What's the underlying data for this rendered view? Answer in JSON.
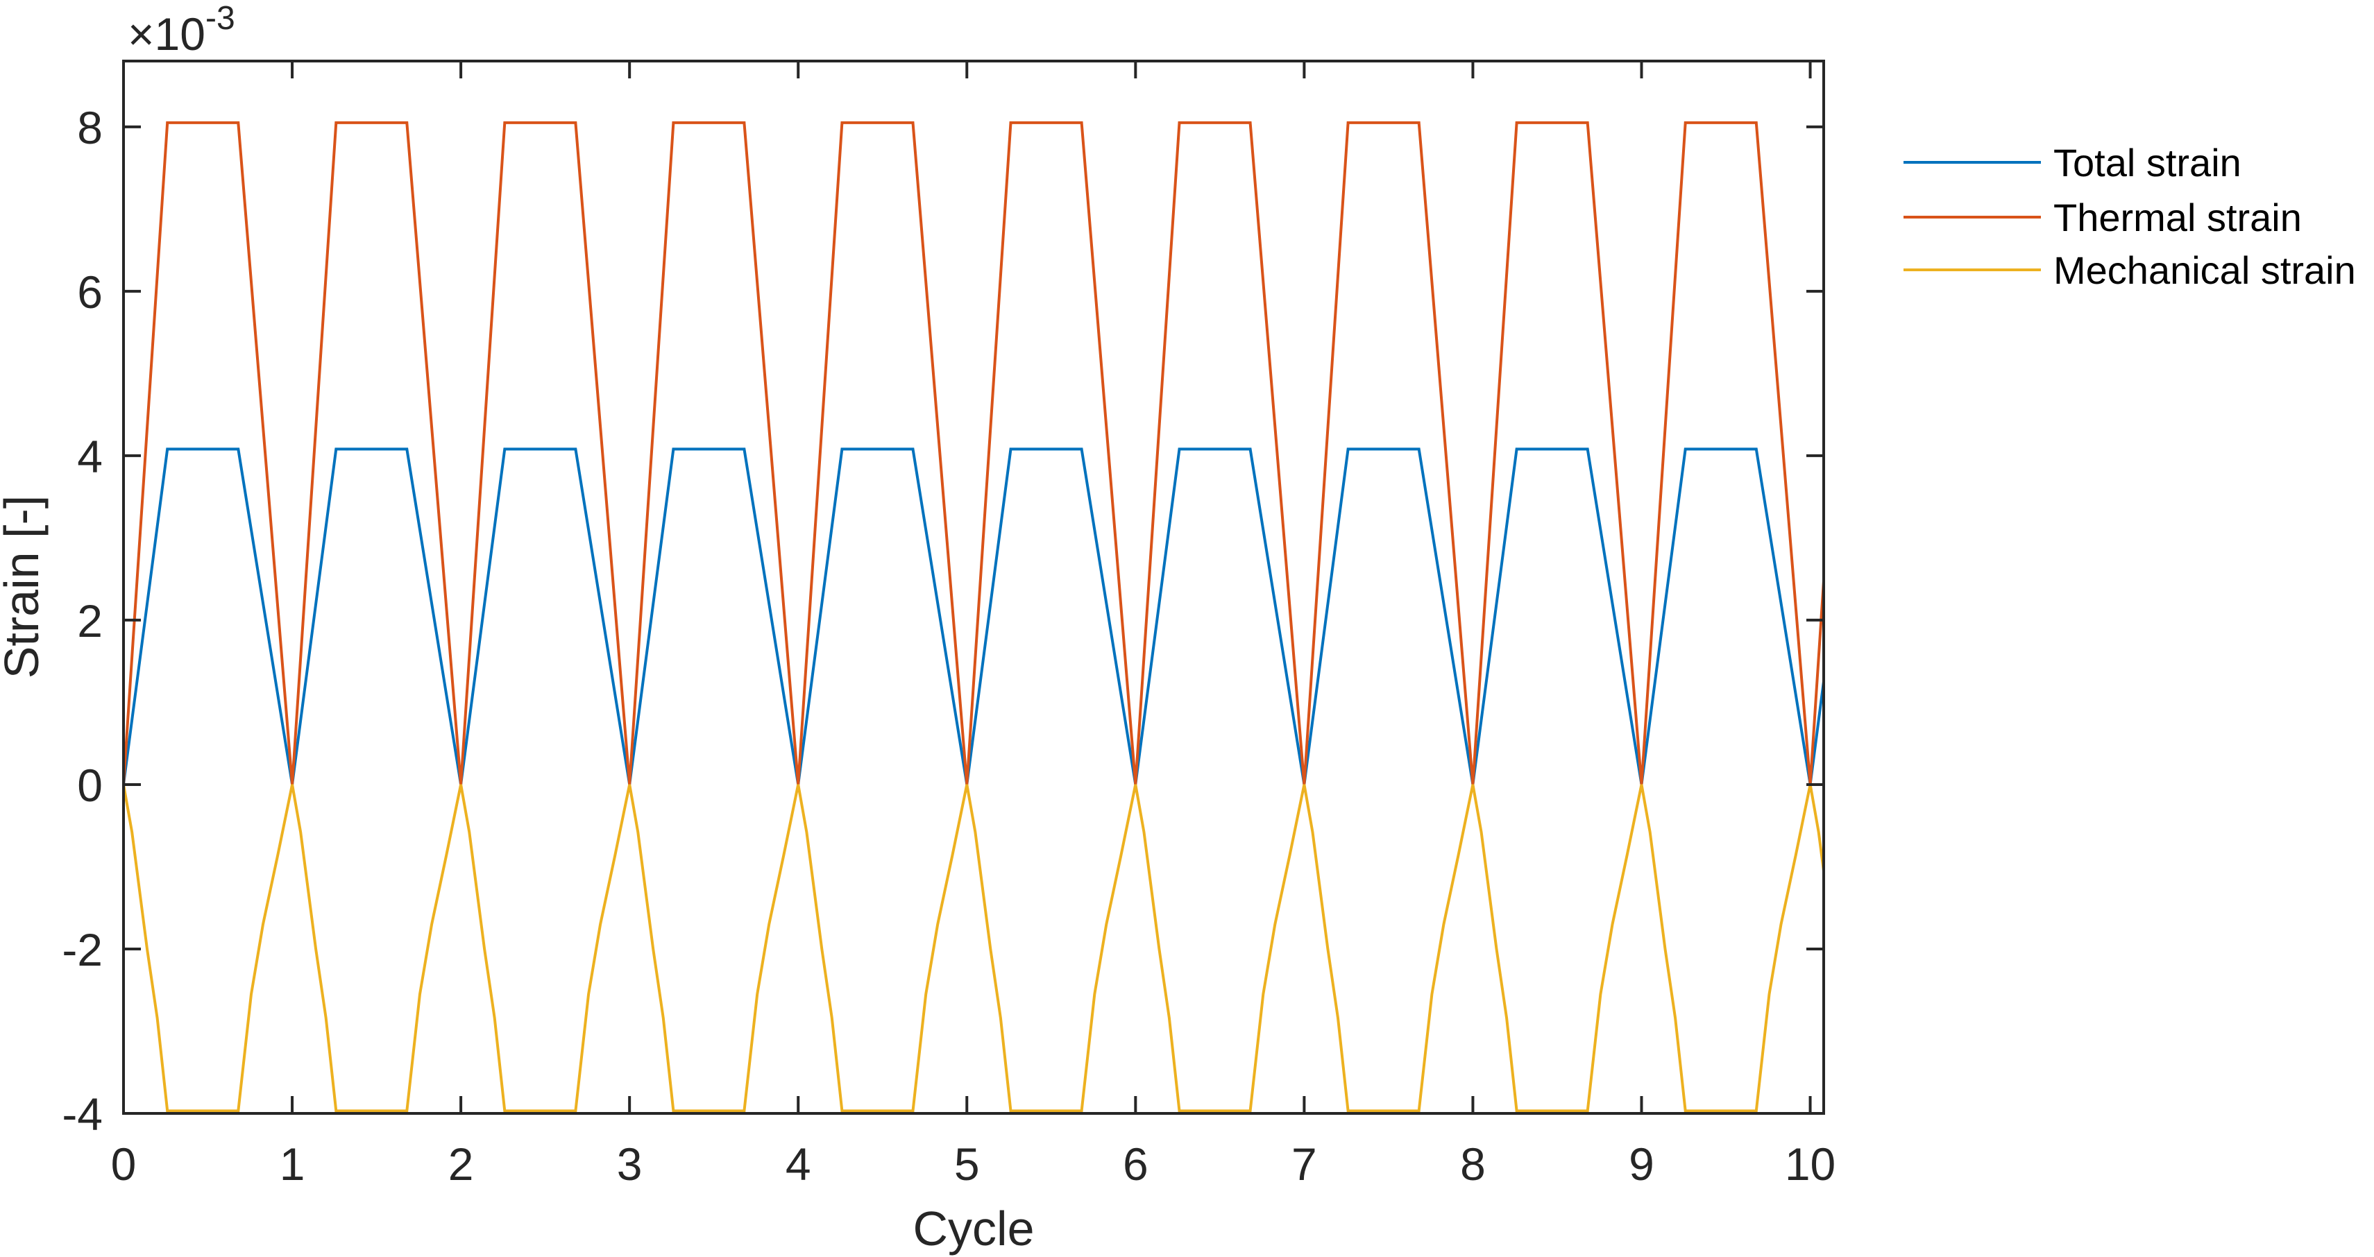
{
  "figure": {
    "y_multiplier": {
      "prefix": "×10",
      "exponent": "-3"
    }
  },
  "colors": {
    "axis": "#262626",
    "total_strain": "#0072BD",
    "thermal_strain": "#D95319",
    "mechanical_strain": "#EDB120",
    "background": "#FFFFFF"
  },
  "chart_data": {
    "type": "line",
    "title": "",
    "xlabel": "Cycle",
    "ylabel": "Strain [-]",
    "y_scale_note": "×10^-3",
    "xlim": [
      0,
      10.08
    ],
    "ylim": [
      -4,
      8.8
    ],
    "xticks": [
      0,
      1,
      2,
      3,
      4,
      5,
      6,
      7,
      8,
      9,
      10
    ],
    "xtick_labels": [
      "0",
      "1",
      "2",
      "3",
      "4",
      "5",
      "6",
      "7",
      "8",
      "9",
      "10"
    ],
    "yticks": [
      -4,
      -2,
      0,
      2,
      4,
      6,
      8
    ],
    "ytick_labels": [
      "-4",
      "-2",
      "0",
      "2",
      "4",
      "6",
      "8"
    ],
    "grid": false,
    "legend_position": "outside-right-top",
    "period": 1,
    "num_cycles_shown": 10.08,
    "cycle_shape": {
      "description": "Each cycle: ramp up 0→0.26, hold 0.26→0.68, ramp down 0.68→1.0 (values in units of 1e-3)",
      "series": [
        {
          "name": "Total strain",
          "color": "#0072BD",
          "x": [
            0,
            0.26,
            0.68,
            1.0
          ],
          "y": [
            0,
            4.08,
            4.08,
            0
          ]
        },
        {
          "name": "Thermal strain",
          "color": "#D95319",
          "x": [
            0,
            0.26,
            0.68,
            1.0
          ],
          "y": [
            0,
            8.05,
            8.05,
            0
          ]
        },
        {
          "name": "Mechanical strain",
          "color": "#EDB120",
          "x": [
            0,
            0.05,
            0.14,
            0.2,
            0.26,
            0.68,
            0.757,
            0.827,
            0.914,
            1.0
          ],
          "y": [
            0,
            -0.58,
            -2.0,
            -2.84,
            -3.97,
            -3.97,
            -2.55,
            -1.7,
            -0.86,
            0
          ]
        }
      ]
    },
    "series": [
      {
        "name": "Total strain",
        "color": "#0072BD",
        "peak": 4.08,
        "min": 0,
        "value_at_xmax": 1.58
      },
      {
        "name": "Thermal strain",
        "color": "#D95319",
        "peak": 8.05,
        "min": 0,
        "value_at_xmax": 2.75
      },
      {
        "name": "Mechanical strain",
        "color": "#EDB120",
        "peak": 0,
        "min": -3.97,
        "value_at_xmax": -1.16
      }
    ]
  },
  "legend": {
    "items": [
      {
        "label": "Total strain",
        "color": "#0072BD"
      },
      {
        "label": "Thermal strain",
        "color": "#D95319"
      },
      {
        "label": "Mechanical strain",
        "color": "#EDB120"
      }
    ]
  }
}
